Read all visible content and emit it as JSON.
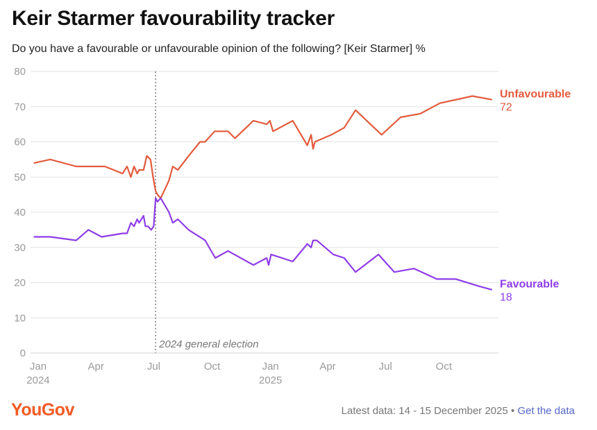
{
  "header": {
    "title": "Keir Starmer favourability tracker",
    "subtitle": "Do you have a favourable or unfavourable opinion of the following? [Keir Starmer] %"
  },
  "footer": {
    "brand": "YouGov",
    "latest": "Latest data: 14 - 15 December 2025",
    "separator": "•",
    "link": "Get the data"
  },
  "colors": {
    "unfavourable": "#e35a3c",
    "favourable": "#8e3ce8",
    "grid": "#e3e3e3",
    "axis_text": "#9a9a9a",
    "annotation": "#777777"
  },
  "chart_data": {
    "type": "line",
    "ylim": [
      0,
      80
    ],
    "yticks": [
      0,
      10,
      20,
      30,
      40,
      50,
      60,
      70,
      80
    ],
    "xlim": [
      "2023-12-20",
      "2025-12-26"
    ],
    "xticks": [
      {
        "date": "2024-01-01",
        "label": "Jan",
        "year": "2024"
      },
      {
        "date": "2024-04-01",
        "label": "Apr",
        "year": ""
      },
      {
        "date": "2024-07-01",
        "label": "Jul",
        "year": ""
      },
      {
        "date": "2024-10-01",
        "label": "Oct",
        "year": ""
      },
      {
        "date": "2025-01-01",
        "label": "Jan",
        "year": "2025"
      },
      {
        "date": "2025-04-01",
        "label": "Apr",
        "year": ""
      },
      {
        "date": "2025-07-01",
        "label": "Jul",
        "year": ""
      },
      {
        "date": "2025-10-01",
        "label": "Oct",
        "year": ""
      }
    ],
    "annotation": {
      "date": "2024-07-04",
      "label": "2024 general election"
    },
    "grid": true,
    "series": [
      {
        "name": "Unfavourable",
        "end_value": "72",
        "points": [
          [
            "2023-12-26",
            54
          ],
          [
            "2024-01-20",
            55
          ],
          [
            "2024-03-01",
            53
          ],
          [
            "2024-04-15",
            53
          ],
          [
            "2024-05-13",
            51
          ],
          [
            "2024-05-20",
            53
          ],
          [
            "2024-05-26",
            50
          ],
          [
            "2024-05-31",
            53
          ],
          [
            "2024-06-05",
            51
          ],
          [
            "2024-06-08",
            52
          ],
          [
            "2024-06-15",
            52
          ],
          [
            "2024-06-20",
            56
          ],
          [
            "2024-06-26",
            55
          ],
          [
            "2024-06-30",
            50
          ],
          [
            "2024-07-04",
            46
          ],
          [
            "2024-07-07",
            45
          ],
          [
            "2024-07-12",
            44
          ],
          [
            "2024-07-25",
            49
          ],
          [
            "2024-07-31",
            53
          ],
          [
            "2024-08-08",
            52
          ],
          [
            "2024-08-25",
            56
          ],
          [
            "2024-09-12",
            60
          ],
          [
            "2024-09-20",
            60
          ],
          [
            "2024-10-05",
            63
          ],
          [
            "2024-10-26",
            63
          ],
          [
            "2024-11-06",
            61
          ],
          [
            "2024-12-05",
            66
          ],
          [
            "2024-12-26",
            65
          ],
          [
            "2024-12-31",
            66
          ],
          [
            "2025-01-05",
            63
          ],
          [
            "2025-02-05",
            66
          ],
          [
            "2025-02-28",
            59
          ],
          [
            "2025-03-06",
            62
          ],
          [
            "2025-03-09",
            58
          ],
          [
            "2025-03-12",
            60
          ],
          [
            "2025-04-07",
            62
          ],
          [
            "2025-04-27",
            64
          ],
          [
            "2025-05-15",
            69
          ],
          [
            "2025-06-25",
            62
          ],
          [
            "2025-07-25",
            67
          ],
          [
            "2025-08-25",
            68
          ],
          [
            "2025-09-25",
            71
          ],
          [
            "2025-11-15",
            73
          ],
          [
            "2025-12-15",
            72
          ]
        ]
      },
      {
        "name": "Favourable",
        "end_value": "18",
        "points": [
          [
            "2023-12-26",
            33
          ],
          [
            "2024-01-20",
            33
          ],
          [
            "2024-03-01",
            32
          ],
          [
            "2024-03-20",
            35
          ],
          [
            "2024-04-10",
            33
          ],
          [
            "2024-05-13",
            34
          ],
          [
            "2024-05-20",
            34
          ],
          [
            "2024-05-26",
            37
          ],
          [
            "2024-05-31",
            36
          ],
          [
            "2024-06-05",
            38
          ],
          [
            "2024-06-08",
            37
          ],
          [
            "2024-06-15",
            39
          ],
          [
            "2024-06-18",
            36
          ],
          [
            "2024-06-22",
            36
          ],
          [
            "2024-06-27",
            35
          ],
          [
            "2024-07-01",
            36
          ],
          [
            "2024-07-04",
            44
          ],
          [
            "2024-07-07",
            43
          ],
          [
            "2024-07-12",
            44
          ],
          [
            "2024-07-25",
            40
          ],
          [
            "2024-07-31",
            37
          ],
          [
            "2024-08-08",
            38
          ],
          [
            "2024-08-25",
            35
          ],
          [
            "2024-09-20",
            32
          ],
          [
            "2024-10-06",
            27
          ],
          [
            "2024-10-26",
            29
          ],
          [
            "2024-12-05",
            25
          ],
          [
            "2024-12-26",
            27
          ],
          [
            "2024-12-29",
            25
          ],
          [
            "2025-01-02",
            28
          ],
          [
            "2025-02-05",
            26
          ],
          [
            "2025-02-28",
            31
          ],
          [
            "2025-03-06",
            30
          ],
          [
            "2025-03-09",
            32
          ],
          [
            "2025-03-15",
            32
          ],
          [
            "2025-04-10",
            28
          ],
          [
            "2025-04-27",
            27
          ],
          [
            "2025-05-15",
            23
          ],
          [
            "2025-06-20",
            28
          ],
          [
            "2025-07-15",
            23
          ],
          [
            "2025-08-15",
            24
          ],
          [
            "2025-09-20",
            21
          ],
          [
            "2025-10-20",
            21
          ],
          [
            "2025-11-25",
            19
          ],
          [
            "2025-12-15",
            18
          ]
        ]
      }
    ]
  }
}
